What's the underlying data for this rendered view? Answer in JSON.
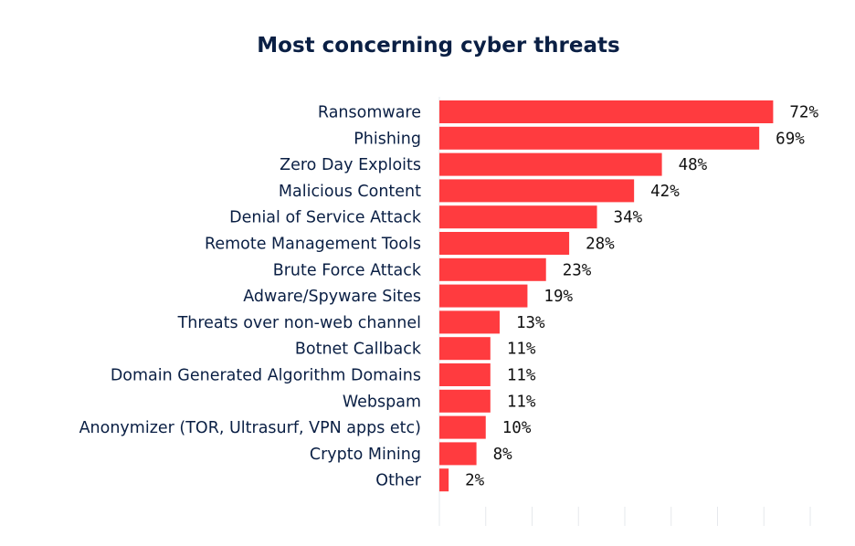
{
  "chart_data": {
    "type": "bar",
    "orientation": "horizontal",
    "title": "Most concerning cyber threats",
    "xlabel": "",
    "ylabel": "",
    "xlim": [
      0,
      80
    ],
    "grid": false,
    "legend": "none",
    "value_suffix": "%",
    "colors": {
      "bar": "#ff3b3f",
      "text": "#0a1f44",
      "value_text": "#111111",
      "axis": "#e6e8ec"
    },
    "categories": [
      "Ransomware",
      "Phishing",
      "Zero Day Exploits",
      "Malicious Content",
      "Denial of Service Attack",
      "Remote Management Tools",
      "Brute Force Attack",
      "Adware/Spyware Sites",
      "Threats over non-web channel",
      "Botnet Callback",
      "Domain Generated Algorithm Domains",
      "Webspam",
      "Anonymizer (TOR, Ultrasurf, VPN apps etc)",
      "Crypto Mining",
      "Other"
    ],
    "values": [
      72,
      69,
      48,
      42,
      34,
      28,
      23,
      19,
      13,
      11,
      11,
      11,
      10,
      8,
      2
    ],
    "value_labels": [
      "72%",
      "69%",
      "48%",
      "42%",
      "34%",
      "28%",
      "23%",
      "19%",
      "13%",
      "11%",
      "11%",
      "11%",
      "10%",
      "8%",
      "2%"
    ]
  }
}
